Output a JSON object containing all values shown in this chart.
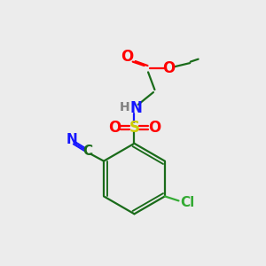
{
  "bg_color": "#ececec",
  "colors": {
    "C": "#1a6b1a",
    "N": "#1515ff",
    "O": "#ff0000",
    "S": "#cccc00",
    "Cl": "#33aa33",
    "H": "#808080",
    "bond": "#1a6b1a"
  },
  "lw": 1.6,
  "fs": 11
}
